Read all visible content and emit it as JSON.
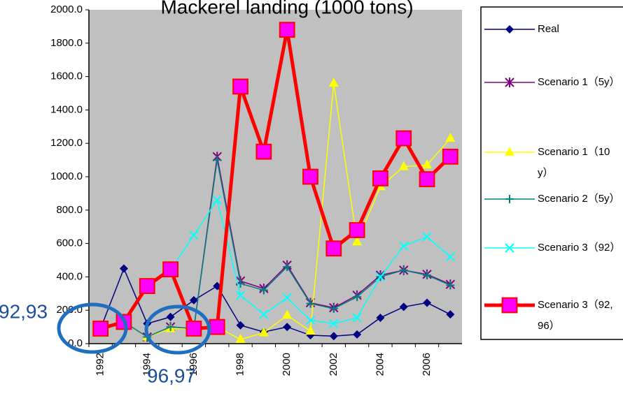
{
  "chart_data": {
    "type": "line",
    "title": "Mackerel landing (1000 tons)",
    "categories": [
      "1992",
      null,
      "1994",
      null,
      "1996",
      null,
      "1998",
      null,
      "2000",
      null,
      "2002",
      null,
      "2004",
      null,
      "2006",
      null
    ],
    "series": [
      {
        "name": "Real",
        "color": "#000080",
        "marker": "diamond",
        "values": [
          90,
          450,
          120,
          160,
          260,
          345,
          110,
          70,
          100,
          50,
          45,
          55,
          155,
          220,
          245,
          175
        ]
      },
      {
        "name": "Scenario 1（5y）",
        "color": "#800080",
        "marker": "star",
        "values": [
          90,
          130,
          40,
          100,
          90,
          1120,
          375,
          330,
          470,
          245,
          215,
          290,
          410,
          440,
          415,
          355
        ]
      },
      {
        "name": "Scenario 1（10y）",
        "color": "#ffff00",
        "marker": "triangle",
        "values": [
          90,
          130,
          40,
          90,
          90,
          100,
          25,
          65,
          170,
          75,
          1560,
          610,
          940,
          1060,
          1070,
          1230
        ]
      },
      {
        "name": "Scenario 2（5y）",
        "color": "#008080",
        "marker": "plus",
        "values": [
          90,
          130,
          40,
          100,
          90,
          1100,
          360,
          320,
          460,
          240,
          210,
          280,
          400,
          440,
          410,
          350
        ]
      },
      {
        "name": "Scenario 3（92）",
        "color": "#00ffff",
        "marker": "cross",
        "values": [
          90,
          130,
          340,
          440,
          650,
          860,
          290,
          175,
          275,
          140,
          120,
          155,
          400,
          585,
          640,
          520
        ]
      },
      {
        "name": "Scenario 3（92,96）",
        "color": "#ff0000",
        "marker": "square",
        "values": [
          90,
          130,
          345,
          445,
          90,
          100,
          1540,
          1150,
          1880,
          1000,
          570,
          680,
          990,
          1230,
          985,
          1120
        ]
      }
    ],
    "ylim": [
      0,
      2000
    ],
    "yticks": [
      {
        "value": 0,
        "label": "0.0"
      },
      {
        "value": 200,
        "label": "200.0"
      },
      {
        "value": 400,
        "label": "400.0"
      },
      {
        "value": 600,
        "label": "600.0"
      },
      {
        "value": 800,
        "label": "800.0"
      },
      {
        "value": 1000,
        "label": "1000.0"
      },
      {
        "value": 1200,
        "label": "1200.0"
      },
      {
        "value": 1400,
        "label": "1400.0"
      },
      {
        "value": 1600,
        "label": "1600.0"
      },
      {
        "value": 1800,
        "label": "1800.0"
      },
      {
        "value": 2000,
        "label": "2000.0"
      }
    ],
    "annotations": [
      "92,93",
      "96,97"
    ],
    "legend": "right"
  }
}
